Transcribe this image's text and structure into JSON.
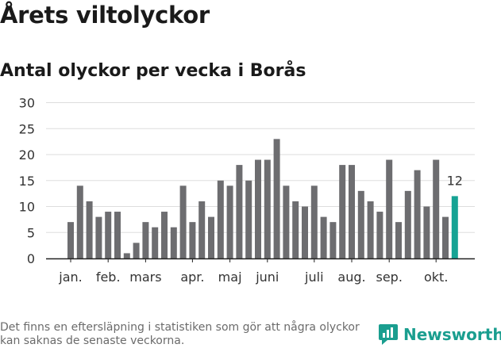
{
  "title": "Årets viltolyckor",
  "subtitle": "Antal olyckor per vecka i Borås",
  "footnote": "Det finns en eftersläpning i statistiken som gör att några olyckor kan saknas de senaste veckorna.",
  "brand": {
    "name": "Newsworthy",
    "color": "#1a9e8f",
    "icon": "newsworthy-logo-icon"
  },
  "colors": {
    "bar": "#6d6d70",
    "highlight": "#16a394",
    "grid": "#dddddd",
    "axis": "#222222",
    "text": "#333333"
  },
  "chart_data": {
    "type": "bar",
    "title": "Antal olyckor per vecka i Borås",
    "ylim": [
      0,
      30
    ],
    "yticks": [
      0,
      5,
      10,
      15,
      20,
      25,
      30
    ],
    "grid": true,
    "weeks": [
      1,
      2,
      3,
      4,
      5,
      6,
      7,
      8,
      9,
      10,
      11,
      12,
      13,
      14,
      15,
      16,
      17,
      18,
      19,
      20,
      21,
      22,
      23,
      24,
      25,
      26,
      27,
      28,
      29,
      30,
      31,
      32,
      33,
      34,
      35,
      36,
      37,
      38,
      39,
      40,
      41,
      42
    ],
    "values": [
      7,
      14,
      11,
      8,
      9,
      9,
      1,
      3,
      7,
      6,
      9,
      6,
      14,
      7,
      11,
      8,
      15,
      14,
      18,
      15,
      19,
      19,
      23,
      14,
      11,
      10,
      14,
      8,
      7,
      18,
      18,
      13,
      11,
      9,
      19,
      7,
      13,
      17,
      10,
      19,
      8,
      12
    ],
    "highlight_index": 41,
    "highlight_label": "12",
    "month_labels": [
      {
        "label": "jan.",
        "week": 1
      },
      {
        "label": "feb.",
        "week": 5
      },
      {
        "label": "mars",
        "week": 9
      },
      {
        "label": "apr.",
        "week": 14
      },
      {
        "label": "maj",
        "week": 18
      },
      {
        "label": "juni",
        "week": 22
      },
      {
        "label": "juli",
        "week": 27
      },
      {
        "label": "aug.",
        "week": 31
      },
      {
        "label": "sep.",
        "week": 35
      },
      {
        "label": "okt.",
        "week": 40
      }
    ]
  }
}
